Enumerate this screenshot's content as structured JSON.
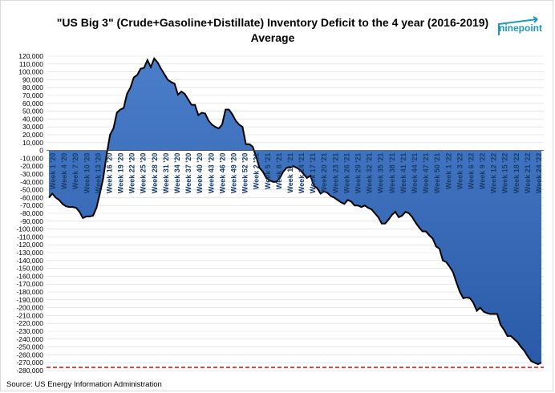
{
  "title_line1": "\"US Big 3\" (Crude+Gasoline+Distillate) Inventory Deficit to the 4 year (2016-2019)",
  "title_line2": "Average",
  "logo_text": "ninepoint",
  "source": "Source: US Energy Information Administration",
  "colors": {
    "area_fill_top": "#4a7ec9",
    "area_fill_bottom": "#2a5aa8",
    "line": "#000000",
    "reference_line": "#e02020",
    "grid": "#d9d9d9",
    "logo": "#1f97b8"
  },
  "chart_data": {
    "type": "area",
    "title": "\"US Big 3\" (Crude+Gasoline+Distillate) Inventory Deficit to the 4 year (2016-2019) Average",
    "xlabel": "",
    "ylabel": "",
    "ylim": [
      -280000,
      120000
    ],
    "ytick_step": 10000,
    "grid": true,
    "reference_line_y": -276000,
    "x_tick_labels": [
      "Week 1 '20",
      "Week 4 '20",
      "Week 7 '20",
      "Week 10 '20",
      "Week 13 '20",
      "Week 16 '20",
      "Week 19 '20",
      "Week 22 '20",
      "Week 25 '20",
      "Week 28 '20",
      "Week 31 '20",
      "Week 34 '20",
      "Week 37 '20",
      "Week 40 '20",
      "Week 43 '20",
      "Week 46 '20",
      "Week 49 '20",
      "Week 52 '20",
      "Week 2 '21",
      "Week 5 '21",
      "Week 8 '21",
      "Week 11 '21",
      "Week 14 '21",
      "Week 17 '21",
      "Week 20 '21",
      "Week 23 '21",
      "Week 26 '21",
      "Week 29 '21",
      "Week 32 '21",
      "Week 35 '21",
      "Week 38 '21",
      "Week 41 '21",
      "Week 44 '21",
      "Week 47 '21",
      "Week 50 '21",
      "Week 1 '22",
      "Week 3 '22",
      "Week 6 '22",
      "Week 9 '22",
      "Week 12 '22",
      "Week 15 '22",
      "Week 18 '22",
      "Week 21 '22",
      "Week 24 '22"
    ],
    "series": [
      {
        "values": [
          -60000,
          -55000,
          -60000,
          -63000,
          -68000,
          -71000,
          -72000,
          -72000,
          -73000,
          -78000,
          -86000,
          -84000,
          -84000,
          -83000,
          -73000,
          -55000,
          -35000,
          -5000,
          20000,
          28000,
          48000,
          52000,
          54000,
          72000,
          80000,
          93000,
          96000,
          104000,
          105000,
          115000,
          106000,
          117000,
          112000,
          104000,
          97000,
          90000,
          87000,
          85000,
          71000,
          75000,
          72000,
          65000,
          58000,
          58000,
          45000,
          48000,
          47000,
          38000,
          33000,
          30000,
          28000,
          33000,
          52000,
          52000,
          46000,
          38000,
          33000,
          30000,
          8000,
          8000,
          5000,
          -8000,
          -22000,
          -27000,
          -35000,
          -38000,
          -40000,
          -40000,
          -35000,
          -27000,
          -22000,
          -22000,
          -20000,
          -22000,
          -25000,
          -30000,
          -35000,
          -32000,
          -45000,
          -48000,
          -55000,
          -52000,
          -54000,
          -58000,
          -60000,
          -63000,
          -66000,
          -68000,
          -63000,
          -65000,
          -70000,
          -70000,
          -72000,
          -70000,
          -73000,
          -75000,
          -80000,
          -85000,
          -93000,
          -93000,
          -88000,
          -82000,
          -78000,
          -85000,
          -83000,
          -78000,
          -80000,
          -85000,
          -92000,
          -98000,
          -103000,
          -103000,
          -108000,
          -112000,
          -122000,
          -125000,
          -140000,
          -142000,
          -148000,
          -155000,
          -168000,
          -180000,
          -188000,
          -187000,
          -188000,
          -194000,
          -204000,
          -200000,
          -205000,
          -207000,
          -208000,
          -208000,
          -208000,
          -222000,
          -228000,
          -236000,
          -236000,
          -240000,
          -244000,
          -250000,
          -255000,
          -262000,
          -268000,
          -270000,
          -272000,
          -270000
        ]
      }
    ]
  }
}
